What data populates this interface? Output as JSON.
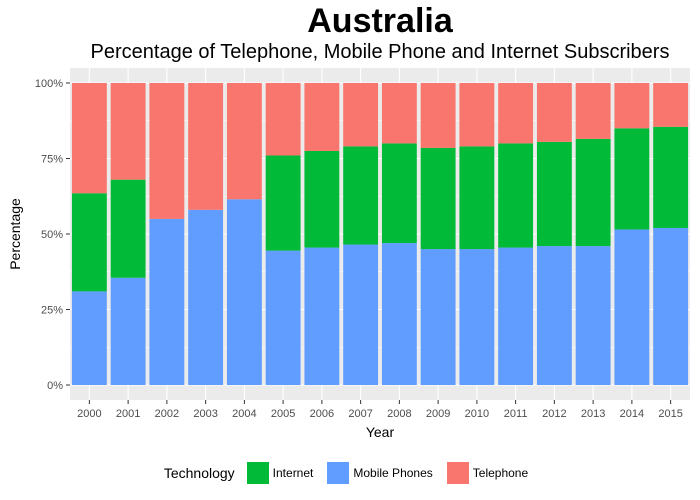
{
  "chart_data": {
    "type": "bar",
    "stacked": true,
    "title": "Australia",
    "subtitle": "Percentage of Telephone, Mobile Phone and Internet Subscribers",
    "xlabel": "Year",
    "ylabel": "Percentage",
    "ylim": [
      0,
      100
    ],
    "yticks": [
      "0%",
      "25%",
      "50%",
      "75%",
      "100%"
    ],
    "ytick_values": [
      0,
      25,
      50,
      75,
      100
    ],
    "categories": [
      "2000",
      "2001",
      "2002",
      "2003",
      "2004",
      "2005",
      "2006",
      "2007",
      "2008",
      "2009",
      "2010",
      "2011",
      "2012",
      "2013",
      "2014",
      "2015"
    ],
    "series": [
      {
        "name": "Mobile Phones",
        "color": "#619CFF",
        "values": [
          31,
          35.5,
          55,
          58,
          61.5,
          44.5,
          45.5,
          46.5,
          47,
          45,
          45,
          45.5,
          46,
          46,
          51.5,
          52
        ]
      },
      {
        "name": "Internet",
        "color": "#00BA38",
        "values": [
          32.5,
          32.5,
          0,
          0,
          0,
          31.5,
          32,
          32.5,
          33,
          33.5,
          34,
          34.5,
          34.5,
          35.5,
          33.5,
          33.5
        ]
      },
      {
        "name": "Telephone",
        "color": "#F8766D",
        "values": [
          36.5,
          32,
          45,
          42,
          38.5,
          24,
          22.5,
          21,
          20,
          21.5,
          21,
          20,
          19.5,
          18.5,
          15,
          14.5
        ]
      }
    ],
    "legend": {
      "title": "Technology",
      "position": "bottom",
      "entries": [
        {
          "label": "Internet",
          "color": "#00BA38"
        },
        {
          "label": "Mobile Phones",
          "color": "#619CFF"
        },
        {
          "label": "Telephone",
          "color": "#F8766D"
        }
      ]
    },
    "grid": true,
    "panel_background": "#EBEBEB"
  }
}
